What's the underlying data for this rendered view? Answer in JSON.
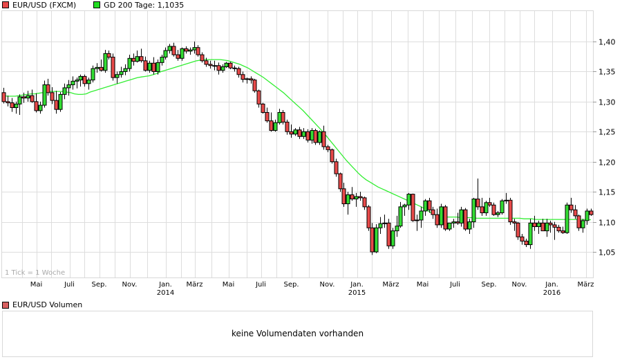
{
  "legend": {
    "series_label": "EUR/USD (FXCM)",
    "series_color": "#e84a4a",
    "ma_label": "GD 200 Tage: 1,1035",
    "ma_color": "#22dd22"
  },
  "chart_area": {
    "tick_note": "1 Tick = 1 Woche"
  },
  "volume": {
    "label": "EUR/USD Volumen",
    "label_color": "#d86060",
    "message": "keine Volumendaten vorhanden"
  },
  "chart_data": {
    "type": "candlestick",
    "title": "EUR/USD (FXCM)",
    "xlabel": "",
    "ylabel": "",
    "interval": "1 Tick = 1 Woche",
    "ylim": [
      1.01,
      1.455
    ],
    "yticks": [
      "1,05",
      "1,10",
      "1,15",
      "1,20",
      "1,25",
      "1,30",
      "1,35",
      "1,40"
    ],
    "xticks": [
      {
        "label": "Mai",
        "year": ""
      },
      {
        "label": "Juli",
        "year": ""
      },
      {
        "label": "Sep.",
        "year": ""
      },
      {
        "label": "Nov.",
        "year": ""
      },
      {
        "label": "Jan.",
        "year": "2014"
      },
      {
        "label": "März",
        "year": ""
      },
      {
        "label": "Mai",
        "year": ""
      },
      {
        "label": "Juli",
        "year": ""
      },
      {
        "label": "Sep.",
        "year": ""
      },
      {
        "label": "Nov.",
        "year": ""
      },
      {
        "label": "Jan.",
        "year": "2015"
      },
      {
        "label": "März",
        "year": ""
      },
      {
        "label": "Mai",
        "year": ""
      },
      {
        "label": "Juli",
        "year": ""
      },
      {
        "label": "Sep.",
        "year": ""
      },
      {
        "label": "Nov.",
        "year": ""
      },
      {
        "label": "Jan.",
        "year": "2016"
      },
      {
        "label": "März",
        "year": ""
      }
    ],
    "grid": true,
    "legend_position": "top",
    "series": [
      {
        "name": "EUR/USD (FXCM)",
        "type": "candlestick",
        "up_color": "#33dd33",
        "down_color": "#e84a4a",
        "ohlc": [
          [
            1.315,
            1.323,
            1.297,
            1.3
          ],
          [
            1.3,
            1.31,
            1.292,
            1.298
          ],
          [
            1.298,
            1.306,
            1.283,
            1.29
          ],
          [
            1.29,
            1.3,
            1.28,
            1.296
          ],
          [
            1.296,
            1.312,
            1.278,
            1.308
          ],
          [
            1.308,
            1.315,
            1.298,
            1.306
          ],
          [
            1.306,
            1.318,
            1.3,
            1.31
          ],
          [
            1.31,
            1.32,
            1.298,
            1.3
          ],
          [
            1.3,
            1.314,
            1.282,
            1.285
          ],
          [
            1.285,
            1.3,
            1.28,
            1.294
          ],
          [
            1.294,
            1.335,
            1.29,
            1.328
          ],
          [
            1.328,
            1.338,
            1.31,
            1.315
          ],
          [
            1.315,
            1.324,
            1.296,
            1.302
          ],
          [
            1.302,
            1.318,
            1.28,
            1.287
          ],
          [
            1.287,
            1.316,
            1.283,
            1.312
          ],
          [
            1.312,
            1.33,
            1.304,
            1.323
          ],
          [
            1.323,
            1.336,
            1.31,
            1.328
          ],
          [
            1.328,
            1.342,
            1.32,
            1.334
          ],
          [
            1.334,
            1.34,
            1.322,
            1.336
          ],
          [
            1.336,
            1.345,
            1.325,
            1.342
          ],
          [
            1.342,
            1.345,
            1.325,
            1.33
          ],
          [
            1.33,
            1.34,
            1.32,
            1.336
          ],
          [
            1.336,
            1.36,
            1.332,
            1.355
          ],
          [
            1.355,
            1.364,
            1.348,
            1.357
          ],
          [
            1.357,
            1.37,
            1.35,
            1.352
          ],
          [
            1.352,
            1.386,
            1.348,
            1.38
          ],
          [
            1.38,
            1.385,
            1.37,
            1.374
          ],
          [
            1.374,
            1.38,
            1.335,
            1.34
          ],
          [
            1.34,
            1.35,
            1.33,
            1.345
          ],
          [
            1.345,
            1.358,
            1.34,
            1.35
          ],
          [
            1.35,
            1.362,
            1.344,
            1.355
          ],
          [
            1.355,
            1.378,
            1.35,
            1.372
          ],
          [
            1.372,
            1.38,
            1.36,
            1.367
          ],
          [
            1.367,
            1.385,
            1.365,
            1.375
          ],
          [
            1.375,
            1.388,
            1.365,
            1.368
          ],
          [
            1.368,
            1.375,
            1.35,
            1.352
          ],
          [
            1.352,
            1.368,
            1.348,
            1.364
          ],
          [
            1.364,
            1.374,
            1.345,
            1.35
          ],
          [
            1.35,
            1.37,
            1.345,
            1.365
          ],
          [
            1.365,
            1.378,
            1.36,
            1.374
          ],
          [
            1.374,
            1.39,
            1.37,
            1.385
          ],
          [
            1.385,
            1.396,
            1.38,
            1.392
          ],
          [
            1.392,
            1.398,
            1.375,
            1.378
          ],
          [
            1.378,
            1.386,
            1.368,
            1.372
          ],
          [
            1.372,
            1.39,
            1.368,
            1.388
          ],
          [
            1.388,
            1.392,
            1.38,
            1.384
          ],
          [
            1.384,
            1.39,
            1.378,
            1.386
          ],
          [
            1.386,
            1.4,
            1.38,
            1.39
          ],
          [
            1.39,
            1.394,
            1.375,
            1.378
          ],
          [
            1.378,
            1.382,
            1.365,
            1.368
          ],
          [
            1.368,
            1.373,
            1.358,
            1.362
          ],
          [
            1.362,
            1.368,
            1.355,
            1.36
          ],
          [
            1.36,
            1.368,
            1.352,
            1.36
          ],
          [
            1.36,
            1.365,
            1.345,
            1.352
          ],
          [
            1.352,
            1.362,
            1.348,
            1.358
          ],
          [
            1.358,
            1.366,
            1.356,
            1.364
          ],
          [
            1.364,
            1.366,
            1.354,
            1.356
          ],
          [
            1.356,
            1.36,
            1.35,
            1.355
          ],
          [
            1.355,
            1.358,
            1.34,
            1.345
          ],
          [
            1.345,
            1.35,
            1.332,
            1.337
          ],
          [
            1.337,
            1.34,
            1.33,
            1.338
          ],
          [
            1.338,
            1.342,
            1.33,
            1.336
          ],
          [
            1.336,
            1.338,
            1.315,
            1.318
          ],
          [
            1.318,
            1.32,
            1.29,
            1.296
          ],
          [
            1.296,
            1.298,
            1.28,
            1.282
          ],
          [
            1.282,
            1.29,
            1.265,
            1.268
          ],
          [
            1.268,
            1.282,
            1.25,
            1.252
          ],
          [
            1.252,
            1.27,
            1.25,
            1.265
          ],
          [
            1.265,
            1.288,
            1.262,
            1.282
          ],
          [
            1.282,
            1.286,
            1.262,
            1.266
          ],
          [
            1.266,
            1.27,
            1.245,
            1.25
          ],
          [
            1.25,
            1.262,
            1.24,
            1.246
          ],
          [
            1.246,
            1.256,
            1.243,
            1.253
          ],
          [
            1.253,
            1.258,
            1.238,
            1.242
          ],
          [
            1.242,
            1.256,
            1.238,
            1.25
          ],
          [
            1.25,
            1.254,
            1.232,
            1.236
          ],
          [
            1.236,
            1.256,
            1.23,
            1.252
          ],
          [
            1.252,
            1.255,
            1.228,
            1.232
          ],
          [
            1.232,
            1.252,
            1.228,
            1.25
          ],
          [
            1.25,
            1.26,
            1.22,
            1.225
          ],
          [
            1.225,
            1.228,
            1.216,
            1.22
          ],
          [
            1.22,
            1.222,
            1.197,
            1.2
          ],
          [
            1.2,
            1.205,
            1.175,
            1.18
          ],
          [
            1.18,
            1.182,
            1.15,
            1.155
          ],
          [
            1.155,
            1.165,
            1.125,
            1.13
          ],
          [
            1.13,
            1.15,
            1.112,
            1.145
          ],
          [
            1.145,
            1.158,
            1.135,
            1.138
          ],
          [
            1.138,
            1.148,
            1.125,
            1.142
          ],
          [
            1.142,
            1.15,
            1.135,
            1.14
          ],
          [
            1.14,
            1.142,
            1.12,
            1.125
          ],
          [
            1.125,
            1.128,
            1.085,
            1.09
          ],
          [
            1.09,
            1.098,
            1.045,
            1.05
          ],
          [
            1.05,
            1.096,
            1.048,
            1.09
          ],
          [
            1.09,
            1.108,
            1.08,
            1.097
          ],
          [
            1.097,
            1.112,
            1.09,
            1.098
          ],
          [
            1.098,
            1.105,
            1.055,
            1.06
          ],
          [
            1.06,
            1.09,
            1.055,
            1.085
          ],
          [
            1.085,
            1.11,
            1.075,
            1.093
          ],
          [
            1.093,
            1.133,
            1.09,
            1.125
          ],
          [
            1.125,
            1.13,
            1.11,
            1.128
          ],
          [
            1.128,
            1.148,
            1.12,
            1.146
          ],
          [
            1.146,
            1.147,
            1.1,
            1.102
          ],
          [
            1.102,
            1.112,
            1.085,
            1.103
          ],
          [
            1.103,
            1.125,
            1.09,
            1.118
          ],
          [
            1.118,
            1.138,
            1.11,
            1.135
          ],
          [
            1.135,
            1.14,
            1.115,
            1.12
          ],
          [
            1.12,
            1.125,
            1.105,
            1.112
          ],
          [
            1.112,
            1.122,
            1.09,
            1.095
          ],
          [
            1.095,
            1.13,
            1.09,
            1.125
          ],
          [
            1.125,
            1.128,
            1.085,
            1.088
          ],
          [
            1.088,
            1.098,
            1.085,
            1.098
          ],
          [
            1.098,
            1.105,
            1.09,
            1.1
          ],
          [
            1.1,
            1.115,
            1.095,
            1.098
          ],
          [
            1.098,
            1.125,
            1.092,
            1.12
          ],
          [
            1.12,
            1.123,
            1.085,
            1.088
          ],
          [
            1.088,
            1.105,
            1.08,
            1.1
          ],
          [
            1.1,
            1.14,
            1.09,
            1.138
          ],
          [
            1.138,
            1.172,
            1.12,
            1.125
          ],
          [
            1.125,
            1.14,
            1.11,
            1.115
          ],
          [
            1.115,
            1.135,
            1.11,
            1.132
          ],
          [
            1.132,
            1.14,
            1.125,
            1.128
          ],
          [
            1.128,
            1.132,
            1.11,
            1.112
          ],
          [
            1.112,
            1.118,
            1.108,
            1.115
          ],
          [
            1.115,
            1.138,
            1.112,
            1.135
          ],
          [
            1.135,
            1.148,
            1.13,
            1.136
          ],
          [
            1.136,
            1.14,
            1.095,
            1.1
          ],
          [
            1.1,
            1.105,
            1.085,
            1.098
          ],
          [
            1.098,
            1.1,
            1.07,
            1.075
          ],
          [
            1.075,
            1.08,
            1.062,
            1.068
          ],
          [
            1.068,
            1.072,
            1.058,
            1.062
          ],
          [
            1.062,
            1.105,
            1.055,
            1.098
          ],
          [
            1.098,
            1.11,
            1.085,
            1.092
          ],
          [
            1.092,
            1.102,
            1.08,
            1.098
          ],
          [
            1.098,
            1.105,
            1.09,
            1.085
          ],
          [
            1.085,
            1.105,
            1.075,
            1.098
          ],
          [
            1.098,
            1.102,
            1.082,
            1.095
          ],
          [
            1.095,
            1.1,
            1.07,
            1.091
          ],
          [
            1.091,
            1.095,
            1.082,
            1.085
          ],
          [
            1.085,
            1.092,
            1.08,
            1.082
          ],
          [
            1.082,
            1.132,
            1.08,
            1.128
          ],
          [
            1.128,
            1.14,
            1.115,
            1.12
          ],
          [
            1.12,
            1.128,
            1.105,
            1.11
          ],
          [
            1.11,
            1.112,
            1.085,
            1.09
          ],
          [
            1.09,
            1.105,
            1.082,
            1.102
          ],
          [
            1.102,
            1.122,
            1.095,
            1.118
          ],
          [
            1.118,
            1.122,
            1.11,
            1.112
          ]
        ]
      },
      {
        "name": "GD 200 Tage",
        "type": "line",
        "color": "#33ee33",
        "last_value": 1.1035,
        "values": [
          1.31,
          1.309,
          1.309,
          1.309,
          1.31,
          1.311,
          1.312,
          1.313,
          1.313,
          1.314,
          1.315,
          1.316,
          1.317,
          1.317,
          1.317,
          1.317,
          1.316,
          1.315,
          1.313,
          1.312,
          1.312,
          1.313,
          1.316,
          1.318,
          1.32,
          1.322,
          1.324,
          1.326,
          1.328,
          1.33,
          1.332,
          1.334,
          1.336,
          1.338,
          1.34,
          1.341,
          1.342,
          1.343,
          1.345,
          1.347,
          1.35,
          1.352,
          1.354,
          1.356,
          1.358,
          1.36,
          1.362,
          1.364,
          1.366,
          1.368,
          1.369,
          1.37,
          1.37,
          1.37,
          1.37,
          1.37,
          1.369,
          1.368,
          1.366,
          1.364,
          1.362,
          1.359,
          1.356,
          1.352,
          1.348,
          1.344,
          1.34,
          1.335,
          1.33,
          1.325,
          1.32,
          1.315,
          1.309,
          1.303,
          1.297,
          1.291,
          1.285,
          1.278,
          1.271,
          1.264,
          1.257,
          1.25,
          1.242,
          1.234,
          1.226,
          1.218,
          1.21,
          1.202,
          1.195,
          1.188,
          1.181,
          1.175,
          1.17,
          1.166,
          1.162,
          1.158,
          1.155,
          1.152,
          1.149,
          1.146,
          1.143,
          1.14,
          1.137,
          1.134,
          1.131,
          1.128,
          1.125,
          1.121,
          1.117,
          1.113,
          1.11,
          1.109,
          1.108,
          1.108,
          1.108,
          1.108,
          1.107,
          1.107,
          1.107,
          1.107,
          1.106,
          1.106,
          1.106,
          1.106,
          1.106,
          1.106,
          1.106,
          1.106,
          1.106,
          1.106,
          1.106,
          1.106,
          1.105,
          1.105,
          1.105,
          1.104,
          1.104,
          1.104,
          1.104,
          1.104,
          1.104,
          1.104,
          1.104,
          1.104,
          1.104,
          1.104,
          1.104,
          1.104,
          1.1035,
          1.1035
        ]
      }
    ]
  }
}
